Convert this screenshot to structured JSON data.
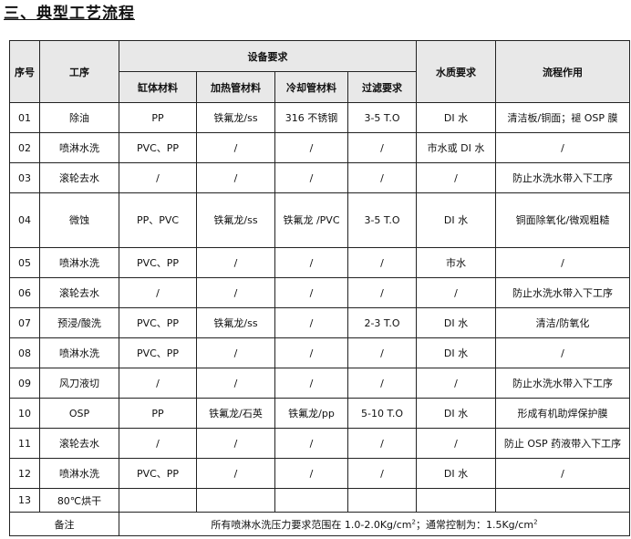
{
  "title": "三、典型工艺流程",
  "headers": {
    "no": "序号",
    "process": "工序",
    "equipment": "设备要求",
    "tank": "缸体材料",
    "heater": "加热管材料",
    "cooler": "冷却管材料",
    "filter": "过滤要求",
    "water": "水质要求",
    "purpose": "流程作用"
  },
  "rows": [
    {
      "no": "01",
      "process": "除油",
      "tank": "PP",
      "heater": "铁氟龙/ss",
      "cooler": "316 不锈钢",
      "filter": "3-5 T.O",
      "water": "DI 水",
      "purpose": "清洁板/铜面；褪 OSP 膜"
    },
    {
      "no": "02",
      "process": "喷淋水洗",
      "tank": "PVC、PP",
      "heater": "/",
      "cooler": "/",
      "filter": "/",
      "water": "市水或 DI 水",
      "purpose": "/"
    },
    {
      "no": "03",
      "process": "滚轮去水",
      "tank": "/",
      "heater": "/",
      "cooler": "/",
      "filter": "/",
      "water": "/",
      "purpose": "防止水洗水带入下工序"
    },
    {
      "no": "04",
      "process": "微蚀",
      "tank": "PP、PVC",
      "heater": "铁氟龙/ss",
      "cooler": "铁氟龙 /PVC",
      "filter": "3-5 T.O",
      "water": "DI 水",
      "purpose": "铜面除氧化/微观粗糙"
    },
    {
      "no": "05",
      "process": "喷淋水洗",
      "tank": "PVC、PP",
      "heater": "/",
      "cooler": "/",
      "filter": "/",
      "water": "市水",
      "purpose": "/"
    },
    {
      "no": "06",
      "process": "滚轮去水",
      "tank": "/",
      "heater": "/",
      "cooler": "/",
      "filter": "/",
      "water": "/",
      "purpose": "防止水洗水带入下工序"
    },
    {
      "no": "07",
      "process": "预浸/酸洗",
      "tank": "PVC、PP",
      "heater": "铁氟龙/ss",
      "cooler": "/",
      "filter": "2-3 T.O",
      "water": "DI 水",
      "purpose": "清洁/防氧化"
    },
    {
      "no": "08",
      "process": "喷淋水洗",
      "tank": "PVC、PP",
      "heater": "/",
      "cooler": "/",
      "filter": "/",
      "water": "DI 水",
      "purpose": "/"
    },
    {
      "no": "09",
      "process": "风刀液切",
      "tank": "/",
      "heater": "/",
      "cooler": "/",
      "filter": "/",
      "water": "/",
      "purpose": "防止水洗水带入下工序"
    },
    {
      "no": "10",
      "process": "OSP",
      "tank": "PP",
      "heater": "铁氟龙/石英",
      "cooler": "铁氟龙/pp",
      "filter": "5-10 T.O",
      "water": "DI 水",
      "purpose": "形成有机助焊保护膜"
    },
    {
      "no": "11",
      "process": "滚轮去水",
      "tank": "/",
      "heater": "/",
      "cooler": "/",
      "filter": "/",
      "water": "/",
      "purpose": "防止 OSP 药液带入下工序"
    },
    {
      "no": "12",
      "process": "喷淋水洗",
      "tank": "PVC、PP",
      "heater": "/",
      "cooler": "/",
      "filter": "/",
      "water": "DI 水",
      "purpose": "/"
    },
    {
      "no": "13",
      "process": "80℃烘干",
      "tank": "",
      "heater": "",
      "cooler": "",
      "filter": "",
      "water": "",
      "purpose": ""
    }
  ],
  "note": {
    "label": "备注",
    "text1": "所有喷淋水洗压力要求范围在 1.0-2.0Kg/cm",
    "sup1": "2",
    "text2": "；通常控制为：1.5Kg/cm",
    "sup2": "2"
  }
}
